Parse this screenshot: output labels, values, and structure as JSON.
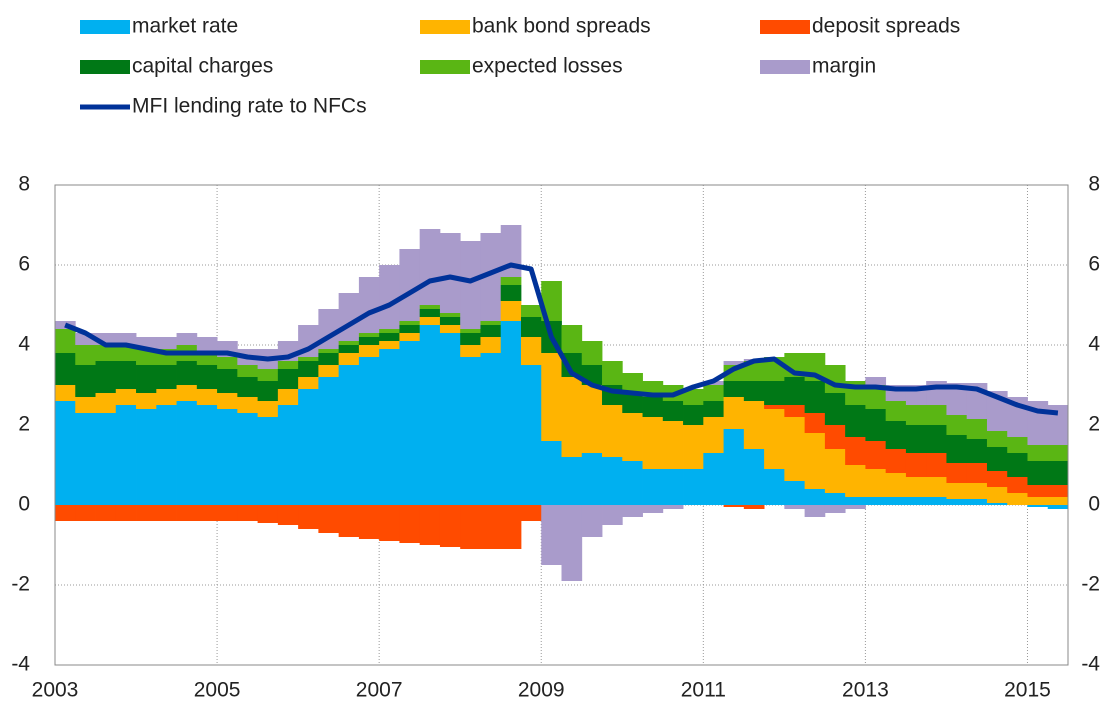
{
  "chart_data": {
    "type": "stacked-bar",
    "x": [
      2003,
      2003.25,
      2003.5,
      2003.75,
      2004,
      2004.25,
      2004.5,
      2004.75,
      2005,
      2005.25,
      2005.5,
      2005.75,
      2006,
      2006.25,
      2006.5,
      2006.75,
      2007,
      2007.25,
      2007.5,
      2007.75,
      2008,
      2008.25,
      2008.5,
      2008.75,
      2009,
      2009.25,
      2009.5,
      2009.75,
      2010,
      2010.25,
      2010.5,
      2010.75,
      2011,
      2011.25,
      2011.5,
      2011.75,
      2012,
      2012.25,
      2012.5,
      2012.75,
      2013,
      2013.25,
      2013.5,
      2013.75,
      2014,
      2014.25,
      2014.5,
      2014.75,
      2015,
      2015.25
    ],
    "series": [
      {
        "name": "market rate",
        "color": "#00b0f0",
        "values": [
          2.6,
          2.3,
          2.3,
          2.5,
          2.4,
          2.5,
          2.6,
          2.5,
          2.4,
          2.3,
          2.2,
          2.5,
          2.9,
          3.2,
          3.5,
          3.7,
          3.9,
          4.1,
          4.5,
          4.3,
          3.7,
          3.8,
          4.6,
          3.5,
          1.6,
          1.2,
          1.3,
          1.2,
          1.1,
          0.9,
          0.9,
          0.9,
          1.3,
          1.9,
          1.4,
          0.9,
          0.6,
          0.4,
          0.3,
          0.2,
          0.2,
          0.2,
          0.2,
          0.2,
          0.15,
          0.15,
          0.05,
          0,
          -0.05,
          -0.1
        ]
      },
      {
        "name": "bank bond spreads",
        "color": "#ffb400",
        "values": [
          0.4,
          0.4,
          0.5,
          0.4,
          0.4,
          0.4,
          0.4,
          0.4,
          0.4,
          0.4,
          0.4,
          0.4,
          0.3,
          0.3,
          0.3,
          0.3,
          0.2,
          0.2,
          0.2,
          0.2,
          0.3,
          0.4,
          0.5,
          0.7,
          2.2,
          2.0,
          1.7,
          1.3,
          1.2,
          1.3,
          1.2,
          1.1,
          0.9,
          0.8,
          1.2,
          1.5,
          1.6,
          1.4,
          1.1,
          0.8,
          0.7,
          0.6,
          0.5,
          0.5,
          0.4,
          0.4,
          0.4,
          0.3,
          0.2,
          0.2
        ]
      },
      {
        "name": "deposit spreads",
        "color": "#ff4b00",
        "values": [
          -0.4,
          -0.4,
          -0.4,
          -0.4,
          -0.4,
          -0.4,
          -0.4,
          -0.4,
          -0.4,
          -0.4,
          -0.45,
          -0.5,
          -0.6,
          -0.7,
          -0.8,
          -0.85,
          -0.9,
          -0.95,
          -1.0,
          -1.05,
          -1.1,
          -1.1,
          -1.1,
          -0.4,
          0,
          0,
          0,
          0,
          0,
          0,
          0,
          0,
          0,
          -0.05,
          -0.1,
          0.1,
          0.3,
          0.5,
          0.6,
          0.7,
          0.7,
          0.6,
          0.6,
          0.6,
          0.5,
          0.5,
          0.4,
          0.4,
          0.3,
          0.3
        ]
      },
      {
        "name": "capital charges",
        "color": "#007816",
        "values": [
          0.8,
          0.8,
          0.8,
          0.7,
          0.7,
          0.6,
          0.6,
          0.6,
          0.6,
          0.5,
          0.5,
          0.5,
          0.4,
          0.3,
          0.2,
          0.2,
          0.2,
          0.2,
          0.2,
          0.2,
          0.3,
          0.3,
          0.4,
          0.5,
          0.8,
          0.6,
          0.5,
          0.5,
          0.5,
          0.5,
          0.5,
          0.5,
          0.4,
          0.4,
          0.5,
          0.6,
          0.7,
          0.8,
          0.8,
          0.8,
          0.8,
          0.7,
          0.7,
          0.7,
          0.7,
          0.6,
          0.6,
          0.6,
          0.6,
          0.6
        ]
      },
      {
        "name": "expected losses",
        "color": "#5ab614",
        "values": [
          0.6,
          0.5,
          0.4,
          0.4,
          0.4,
          0.4,
          0.4,
          0.3,
          0.3,
          0.3,
          0.3,
          0.2,
          0.1,
          0.1,
          0.1,
          0.1,
          0.1,
          0.1,
          0.1,
          0.1,
          0.1,
          0.1,
          0.2,
          0.3,
          1.0,
          0.7,
          0.6,
          0.6,
          0.5,
          0.4,
          0.4,
          0.4,
          0.4,
          0.4,
          0.5,
          0.6,
          0.6,
          0.7,
          0.7,
          0.6,
          0.6,
          0.5,
          0.5,
          0.5,
          0.5,
          0.5,
          0.4,
          0.4,
          0.4,
          0.4
        ]
      },
      {
        "name": "margin",
        "color": "#a99bcb",
        "values": [
          0.2,
          0.3,
          0.3,
          0.3,
          0.3,
          0.3,
          0.3,
          0.4,
          0.4,
          0.4,
          0.5,
          0.5,
          0.8,
          1.0,
          1.2,
          1.4,
          1.6,
          1.8,
          1.9,
          2.0,
          2.2,
          2.2,
          1.3,
          0,
          -1.5,
          -1.9,
          -0.8,
          -0.5,
          -0.3,
          -0.2,
          -0.1,
          0,
          0.1,
          0.1,
          0.05,
          0,
          -0.1,
          -0.3,
          -0.2,
          -0.1,
          0.2,
          0.4,
          0.5,
          0.6,
          0.8,
          0.9,
          1.0,
          1.0,
          1.1,
          1.0
        ]
      },
      {
        "name": "MFI lending rate to NFCs",
        "color": "#003299",
        "kind": "line",
        "values": [
          4.5,
          4.3,
          4.0,
          4.0,
          3.9,
          3.8,
          3.8,
          3.8,
          3.8,
          3.7,
          3.65,
          3.7,
          3.9,
          4.2,
          4.5,
          4.8,
          5.0,
          5.3,
          5.6,
          5.7,
          5.6,
          5.8,
          6.0,
          5.9,
          4.2,
          3.3,
          3.0,
          2.85,
          2.8,
          2.75,
          2.75,
          2.95,
          3.1,
          3.4,
          3.6,
          3.65,
          3.3,
          3.25,
          3.0,
          2.95,
          2.95,
          2.9,
          2.9,
          2.95,
          2.95,
          2.9,
          2.7,
          2.5,
          2.35,
          2.3
        ]
      }
    ],
    "xlim": [
      2003,
      2015.5
    ],
    "xticks": [
      2003,
      2005,
      2007,
      2009,
      2011,
      2013,
      2015
    ],
    "ylim": [
      -4,
      8
    ],
    "yticks": [
      -4,
      -2,
      0,
      2,
      4,
      6,
      8
    ],
    "grid": true
  }
}
